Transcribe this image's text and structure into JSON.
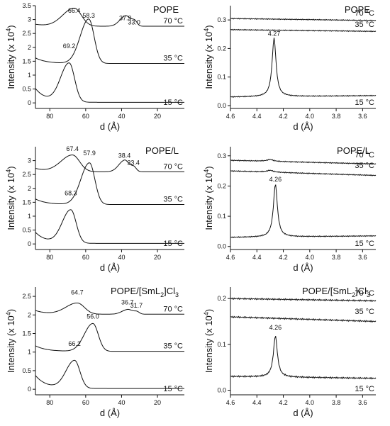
{
  "chart_data": [
    {
      "type": "line",
      "title": "POPE",
      "xlabel": "d (Å)",
      "ylabel": "Intensity (x 10^4)",
      "ylabel_parts": {
        "main": "Intensity (x 10",
        "exp": "4",
        "close": ")"
      },
      "xlim": [
        88,
        5
      ],
      "ylim": [
        -0.2,
        3.5
      ],
      "xticks": [
        80,
        60,
        40,
        20
      ],
      "yticks": [
        0.0,
        0.5,
        1.0,
        1.5,
        2.0,
        2.5,
        3.0,
        3.5
      ],
      "series": [
        {
          "name": "70 °C",
          "baseline": 2.76,
          "offset": 0.07,
          "peaks": [
            [
              66.4,
              0.65,
              4
            ],
            [
              37.9,
              0.35,
              2
            ],
            [
              33.0,
              0.23,
              1.5
            ]
          ]
        },
        {
          "name": "35 °C",
          "baseline": 1.42,
          "offset": 0.2,
          "peaks": [
            [
              58.3,
              1.6,
              3
            ]
          ]
        },
        {
          "name": "15 °C",
          "baseline": 0.02,
          "offset": 0.5,
          "peaks": [
            [
              69.2,
              1.4,
              3
            ]
          ]
        }
      ],
      "peak_labels": [
        {
          "text": "66.4",
          "x": 66.4,
          "y": 3.25
        },
        {
          "text": "37.9",
          "x": 37.9,
          "y": 2.98
        },
        {
          "text": "33.0",
          "x": 33.0,
          "y": 2.82
        },
        {
          "text": "58.3",
          "x": 58.3,
          "y": 3.07
        },
        {
          "text": "69.2",
          "x": 69.2,
          "y": 1.97
        }
      ]
    },
    {
      "type": "line",
      "title": "POPE",
      "xlabel": "d (Å)",
      "ylabel": "Intensity (x 10^4)",
      "ylabel_parts": {
        "main": "Intensity (x 10",
        "exp": "4",
        "close": ")"
      },
      "xlim": [
        4.6,
        3.5
      ],
      "ylim": [
        -0.01,
        0.35
      ],
      "xticks": [
        4.6,
        4.4,
        4.2,
        4.0,
        3.8,
        3.6
      ],
      "yticks": [
        0.0,
        0.1,
        0.2,
        0.3
      ],
      "series": [
        {
          "name": "70 °C",
          "baseline": 0.305,
          "slope": -0.007,
          "peaks": []
        },
        {
          "name": "35 °C",
          "baseline": 0.266,
          "slope": -0.006,
          "peaks": []
        },
        {
          "name": "15 °C",
          "baseline": 0.03,
          "slope": 0.005,
          "peaks": [
            [
              4.27,
              0.205,
              0.018
            ]
          ]
        }
      ],
      "peak_labels": [
        {
          "text": "4.27",
          "x": 4.27,
          "y": 0.245
        }
      ]
    },
    {
      "type": "line",
      "title": "POPE/L",
      "xlabel": "d (Å)",
      "ylabel": "Intensity (x 10^4)",
      "ylabel_parts": {
        "main": "Intensity (x 10",
        "exp": "4",
        "close": ")"
      },
      "xlim": [
        88,
        5
      ],
      "ylim": [
        -0.2,
        3.5
      ],
      "xticks": [
        80,
        60,
        40,
        20
      ],
      "yticks": [
        0.0,
        0.5,
        1.0,
        1.5,
        2.0,
        2.5,
        3.0
      ],
      "series": [
        {
          "name": "70 °C",
          "baseline": 2.6,
          "offset": 0.12,
          "peaks": [
            [
              67.4,
              0.6,
              4
            ],
            [
              38.4,
              0.4,
              2
            ],
            [
              33.4,
              0.2,
              1.5
            ]
          ]
        },
        {
          "name": "35 °C",
          "baseline": 1.42,
          "offset": 0.2,
          "peaks": [
            [
              57.9,
              1.5,
              3
            ]
          ]
        },
        {
          "name": "15 °C",
          "baseline": 0.02,
          "offset": 0.4,
          "peaks": [
            [
              68.3,
              1.2,
              3
            ]
          ]
        }
      ],
      "peak_labels": [
        {
          "text": "67.4",
          "x": 67.4,
          "y": 3.35
        },
        {
          "text": "38.4",
          "x": 38.4,
          "y": 3.1
        },
        {
          "text": "33.4",
          "x": 33.4,
          "y": 2.85
        },
        {
          "text": "57.9",
          "x": 57.9,
          "y": 3.2
        },
        {
          "text": "68.3",
          "x": 68.3,
          "y": 1.75
        }
      ]
    },
    {
      "type": "line",
      "title": "POPE/L",
      "xlabel": "d (Å)",
      "ylabel": "Intensity (x 10^4)",
      "ylabel_parts": {
        "main": "Intensity (x 10",
        "exp": "4",
        "close": ")"
      },
      "xlim": [
        4.6,
        3.5
      ],
      "ylim": [
        -0.01,
        0.33
      ],
      "xticks": [
        4.6,
        4.4,
        4.2,
        4.0,
        3.8,
        3.6
      ],
      "yticks": [
        0.0,
        0.1,
        0.2,
        0.3
      ],
      "series": [
        {
          "name": "70 °C",
          "baseline": 0.285,
          "slope": -0.012,
          "peaks": [
            [
              4.3,
              0.006,
              0.03
            ]
          ]
        },
        {
          "name": "35 °C",
          "baseline": 0.25,
          "slope": -0.015,
          "peaks": [
            [
              4.3,
              0.006,
              0.03
            ]
          ]
        },
        {
          "name": "15 °C",
          "baseline": 0.03,
          "slope": 0.005,
          "peaks": [
            [
              4.26,
              0.175,
              0.018
            ]
          ]
        }
      ],
      "peak_labels": [
        {
          "text": "4.26",
          "x": 4.26,
          "y": 0.215
        }
      ]
    },
    {
      "type": "line",
      "title": "POPE/[SmL2]Cl3",
      "title_parts": {
        "a": "POPE/[SmL",
        "sub1": "2",
        "b": "]Cl",
        "sub2": "3"
      },
      "xlabel": "d (Å)",
      "ylabel": "Intensity (x 10^4)",
      "ylabel_parts": {
        "main": "Intensity (x 10",
        "exp": "4",
        "close": ")"
      },
      "xlim": [
        88,
        5
      ],
      "ylim": [
        -0.15,
        2.75
      ],
      "xticks": [
        80,
        60,
        40,
        20
      ],
      "yticks": [
        0.0,
        0.5,
        1.0,
        1.5,
        2.0,
        2.5
      ],
      "series": [
        {
          "name": "70 °C",
          "baseline": 2.02,
          "offset": 0.1,
          "peaks": [
            [
              64.7,
              0.3,
              4
            ],
            [
              36.7,
              0.12,
              2
            ],
            [
              31.7,
              0.08,
              1.5
            ]
          ]
        },
        {
          "name": "35 °C",
          "baseline": 1.02,
          "offset": 0.15,
          "peaks": [
            [
              56.0,
              0.75,
              3
            ]
          ]
        },
        {
          "name": "15 °C",
          "baseline": 0.02,
          "offset": 0.35,
          "peaks": [
            [
              66.2,
              0.75,
              3
            ]
          ]
        }
      ],
      "peak_labels": [
        {
          "text": "64.7",
          "x": 64.7,
          "y": 2.55
        },
        {
          "text": "36.7",
          "x": 36.7,
          "y": 2.28
        },
        {
          "text": "31.7",
          "x": 31.7,
          "y": 2.2
        },
        {
          "text": "56.0",
          "x": 56.0,
          "y": 1.9
        },
        {
          "text": "66.2",
          "x": 66.2,
          "y": 1.17
        }
      ]
    },
    {
      "type": "line",
      "title": "POPE/[SmL2]Cl3",
      "title_parts": {
        "a": "POPE/[SmL",
        "sub1": "2",
        "b": "]Cl",
        "sub2": "3"
      },
      "xlabel": "d (Å)",
      "ylabel": "Intensity (x 10^4)",
      "ylabel_parts": {
        "main": "Intensity (x 10",
        "exp": "4",
        "close": ")"
      },
      "xlim": [
        4.6,
        3.5
      ],
      "ylim": [
        -0.01,
        0.225
      ],
      "xticks": [
        4.6,
        4.4,
        4.2,
        4.0,
        3.8,
        3.6
      ],
      "yticks": [
        0.0,
        0.1,
        0.2
      ],
      "series": [
        {
          "name": "70 °C",
          "baseline": 0.2,
          "slope": -0.005,
          "peaks": []
        },
        {
          "name": "35 °C",
          "baseline": 0.16,
          "slope": -0.01,
          "peaks": []
        },
        {
          "name": "15 °C",
          "baseline": 0.03,
          "slope": -0.004,
          "peaks": [
            [
              4.26,
              0.09,
              0.018
            ]
          ]
        }
      ],
      "peak_labels": [
        {
          "text": "4.26",
          "x": 4.26,
          "y": 0.132
        }
      ]
    }
  ]
}
